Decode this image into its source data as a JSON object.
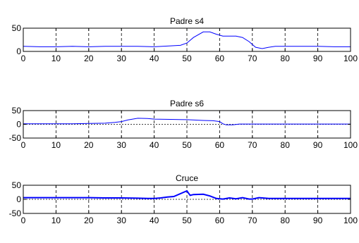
{
  "chart_data": [
    {
      "type": "line",
      "title": "Padre s4",
      "xlabel": "",
      "ylabel": "",
      "xlim": [
        0,
        100
      ],
      "ylim": [
        0,
        50
      ],
      "xticks": [
        0,
        10,
        20,
        30,
        40,
        50,
        60,
        70,
        80,
        90,
        100
      ],
      "yticks": [
        0,
        50
      ],
      "grid": "vertical dashed",
      "series": [
        {
          "color": "#0000ff",
          "x": [
            0,
            5,
            10,
            15,
            20,
            25,
            30,
            35,
            40,
            45,
            48,
            50,
            52,
            55,
            57,
            59,
            61,
            63,
            65,
            67,
            69,
            71,
            73,
            75,
            77,
            80,
            85,
            90,
            95,
            100
          ],
          "y": [
            11,
            10,
            10,
            11,
            10,
            11,
            11,
            11,
            10,
            12,
            13,
            18,
            30,
            42,
            42,
            37,
            33,
            33,
            33,
            30,
            21,
            9,
            6,
            9,
            11,
            11,
            11,
            11,
            10,
            10
          ]
        }
      ]
    },
    {
      "type": "line",
      "title": "Padre s6",
      "xlabel": "",
      "ylabel": "",
      "xlim": [
        0,
        100
      ],
      "ylim": [
        -50,
        50
      ],
      "xticks": [
        0,
        10,
        20,
        30,
        40,
        50,
        60,
        70,
        80,
        90,
        100
      ],
      "yticks": [
        -50,
        0,
        50
      ],
      "grid": "vertical dashed",
      "zero_line": "dotted",
      "series": [
        {
          "color": "#0000ff",
          "x": [
            0,
            5,
            10,
            15,
            20,
            25,
            28,
            30,
            32,
            35,
            38,
            40,
            45,
            50,
            55,
            58,
            60,
            61,
            62,
            64,
            66,
            70,
            75,
            80,
            85,
            90,
            95,
            100
          ],
          "y": [
            2,
            2,
            2,
            2,
            3,
            4,
            7,
            10,
            16,
            22,
            21,
            19,
            18,
            17,
            14,
            13,
            10,
            2,
            -2,
            -2,
            1,
            1,
            1,
            1,
            1,
            1,
            1,
            1
          ]
        }
      ]
    },
    {
      "type": "line",
      "title": "Cruce",
      "xlabel": "",
      "ylabel": "",
      "xlim": [
        0,
        100
      ],
      "ylim": [
        -50,
        50
      ],
      "xticks": [
        0,
        10,
        20,
        30,
        40,
        50,
        60,
        70,
        80,
        90,
        100
      ],
      "yticks": [
        -50,
        0,
        50
      ],
      "grid": "vertical dashed",
      "zero_line": "dotted",
      "series": [
        {
          "color": "#0000ff",
          "x": [
            0,
            5,
            10,
            15,
            20,
            25,
            30,
            35,
            38,
            40,
            42,
            44,
            46,
            48,
            50,
            51,
            52,
            55,
            57,
            59,
            61,
            63,
            65,
            67,
            69,
            70,
            72,
            75,
            80,
            85,
            90,
            95,
            100
          ],
          "y": [
            6,
            6,
            6,
            6,
            6,
            5,
            5,
            4,
            3,
            3,
            5,
            8,
            10,
            20,
            30,
            14,
            17,
            18,
            12,
            3,
            1,
            5,
            2,
            6,
            1,
            1,
            6,
            3,
            3,
            3,
            3,
            3,
            3
          ]
        }
      ]
    }
  ]
}
